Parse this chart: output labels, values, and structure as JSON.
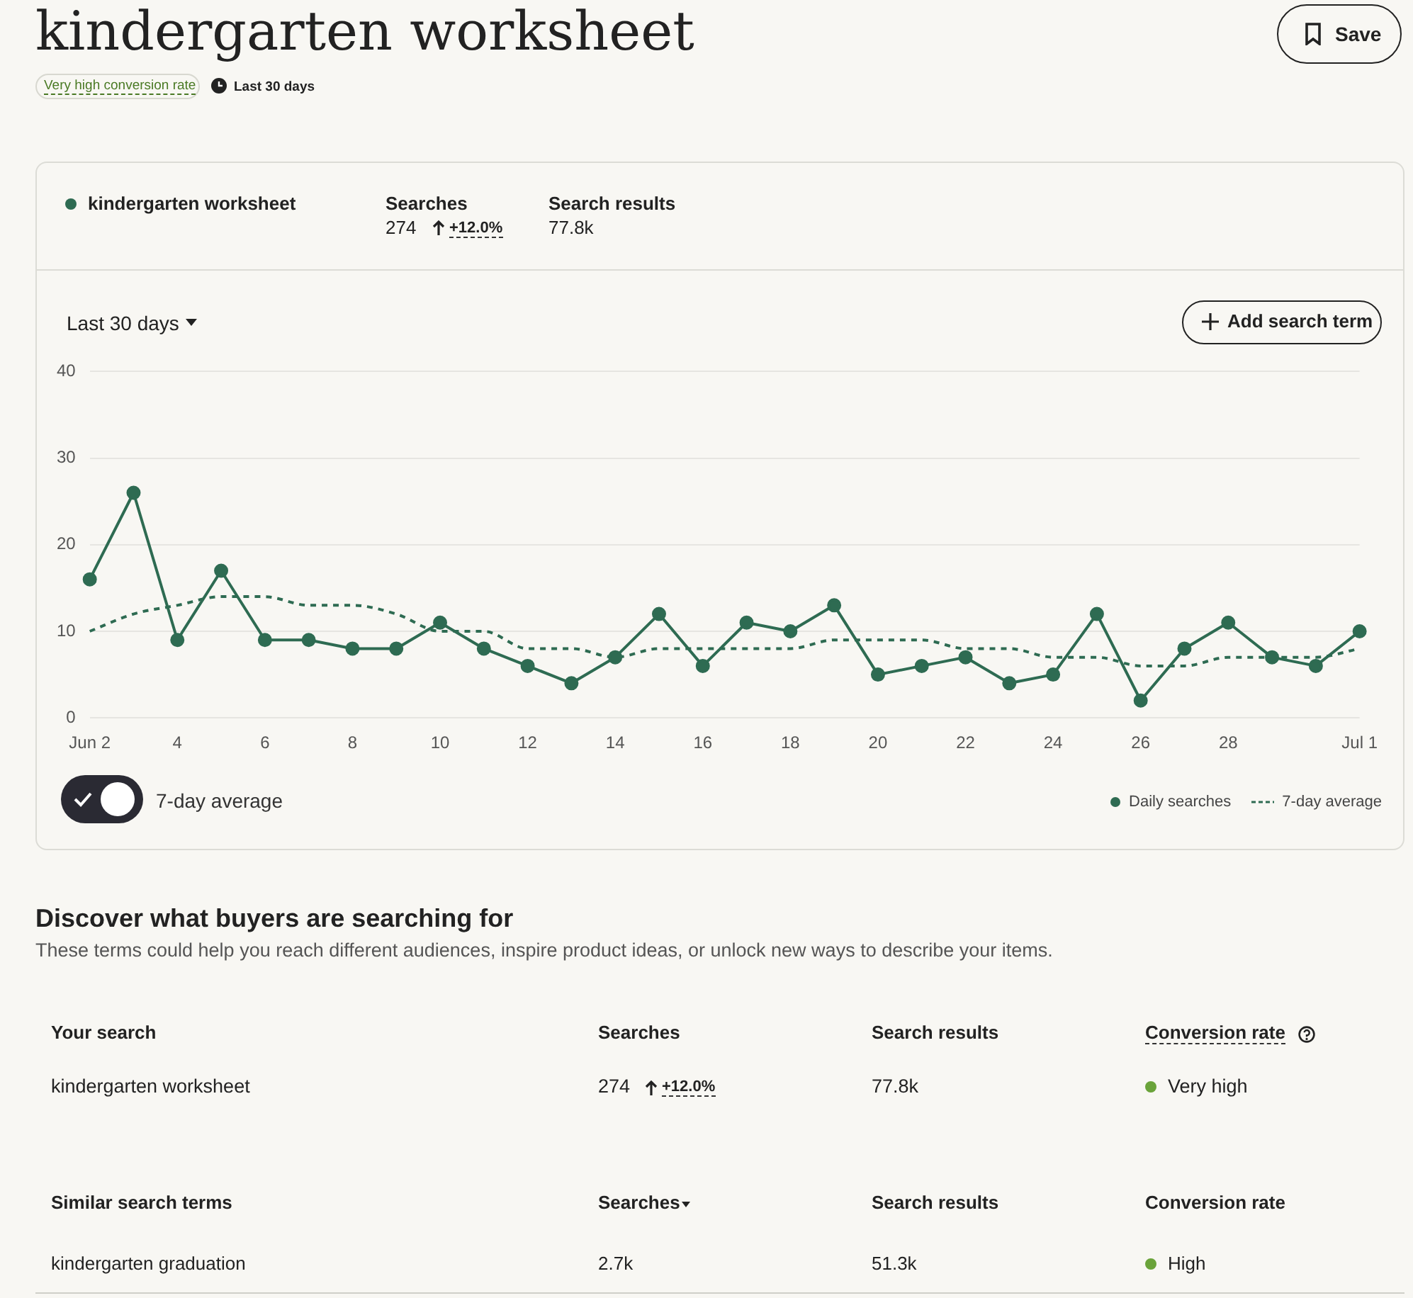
{
  "chart_data": {
    "type": "line",
    "title": "kindergarten worksheet",
    "categories": [
      "Jun 2",
      null,
      "4",
      null,
      "6",
      null,
      "8",
      null,
      "10",
      null,
      "12",
      null,
      "14",
      null,
      "16",
      null,
      "18",
      null,
      "20",
      null,
      "22",
      null,
      "24",
      null,
      "26",
      null,
      "28",
      null,
      null,
      "Jul 1"
    ],
    "series": [
      {
        "name": "Daily searches",
        "color": "#2e6b52",
        "marker": "circle",
        "line_style": "solid",
        "values": [
          16,
          26,
          9,
          17,
          9,
          9,
          8,
          8,
          11,
          8,
          6,
          4,
          7,
          12,
          6,
          11,
          10,
          13,
          5,
          6,
          7,
          4,
          5,
          12,
          2,
          8,
          11,
          7,
          6,
          10
        ]
      },
      {
        "name": "7-day average",
        "color": "#2e6b52",
        "marker": "none",
        "line_style": "dashed",
        "values": [
          10,
          12,
          13,
          14,
          14,
          13,
          13,
          12,
          10,
          10,
          8,
          8,
          7,
          8,
          8,
          8,
          8,
          9,
          9,
          9,
          8,
          8,
          7,
          7,
          6,
          6,
          7,
          7,
          7,
          8
        ]
      }
    ],
    "ylim": [
      0,
      40
    ],
    "yticks": [
      0,
      10,
      20,
      30,
      40
    ],
    "grid": "y",
    "legend": "bottom right",
    "annotations": [
      "Save",
      "Very high conversion rate",
      "Last 30 days",
      "kindergarten worksheet",
      "Searches",
      "274",
      "+12.0%",
      "Search results",
      "77.8k",
      "Last 30 days",
      "Add search term",
      "7-day average",
      "Discover what buyers are searching for",
      "These terms could help you reach different audiences, inspire product ideas, or unlock new ways to describe your items.",
      "Your search",
      "Searches",
      "Search results",
      "Conversion rate",
      "kindergarten worksheet",
      "274",
      "+12.0%",
      "77.8k",
      "Very high",
      "Similar search terms",
      "Searches",
      "Search results",
      "Conversion rate",
      "kindergarten graduation",
      "2.7k",
      "51.3k",
      "High"
    ]
  }
}
